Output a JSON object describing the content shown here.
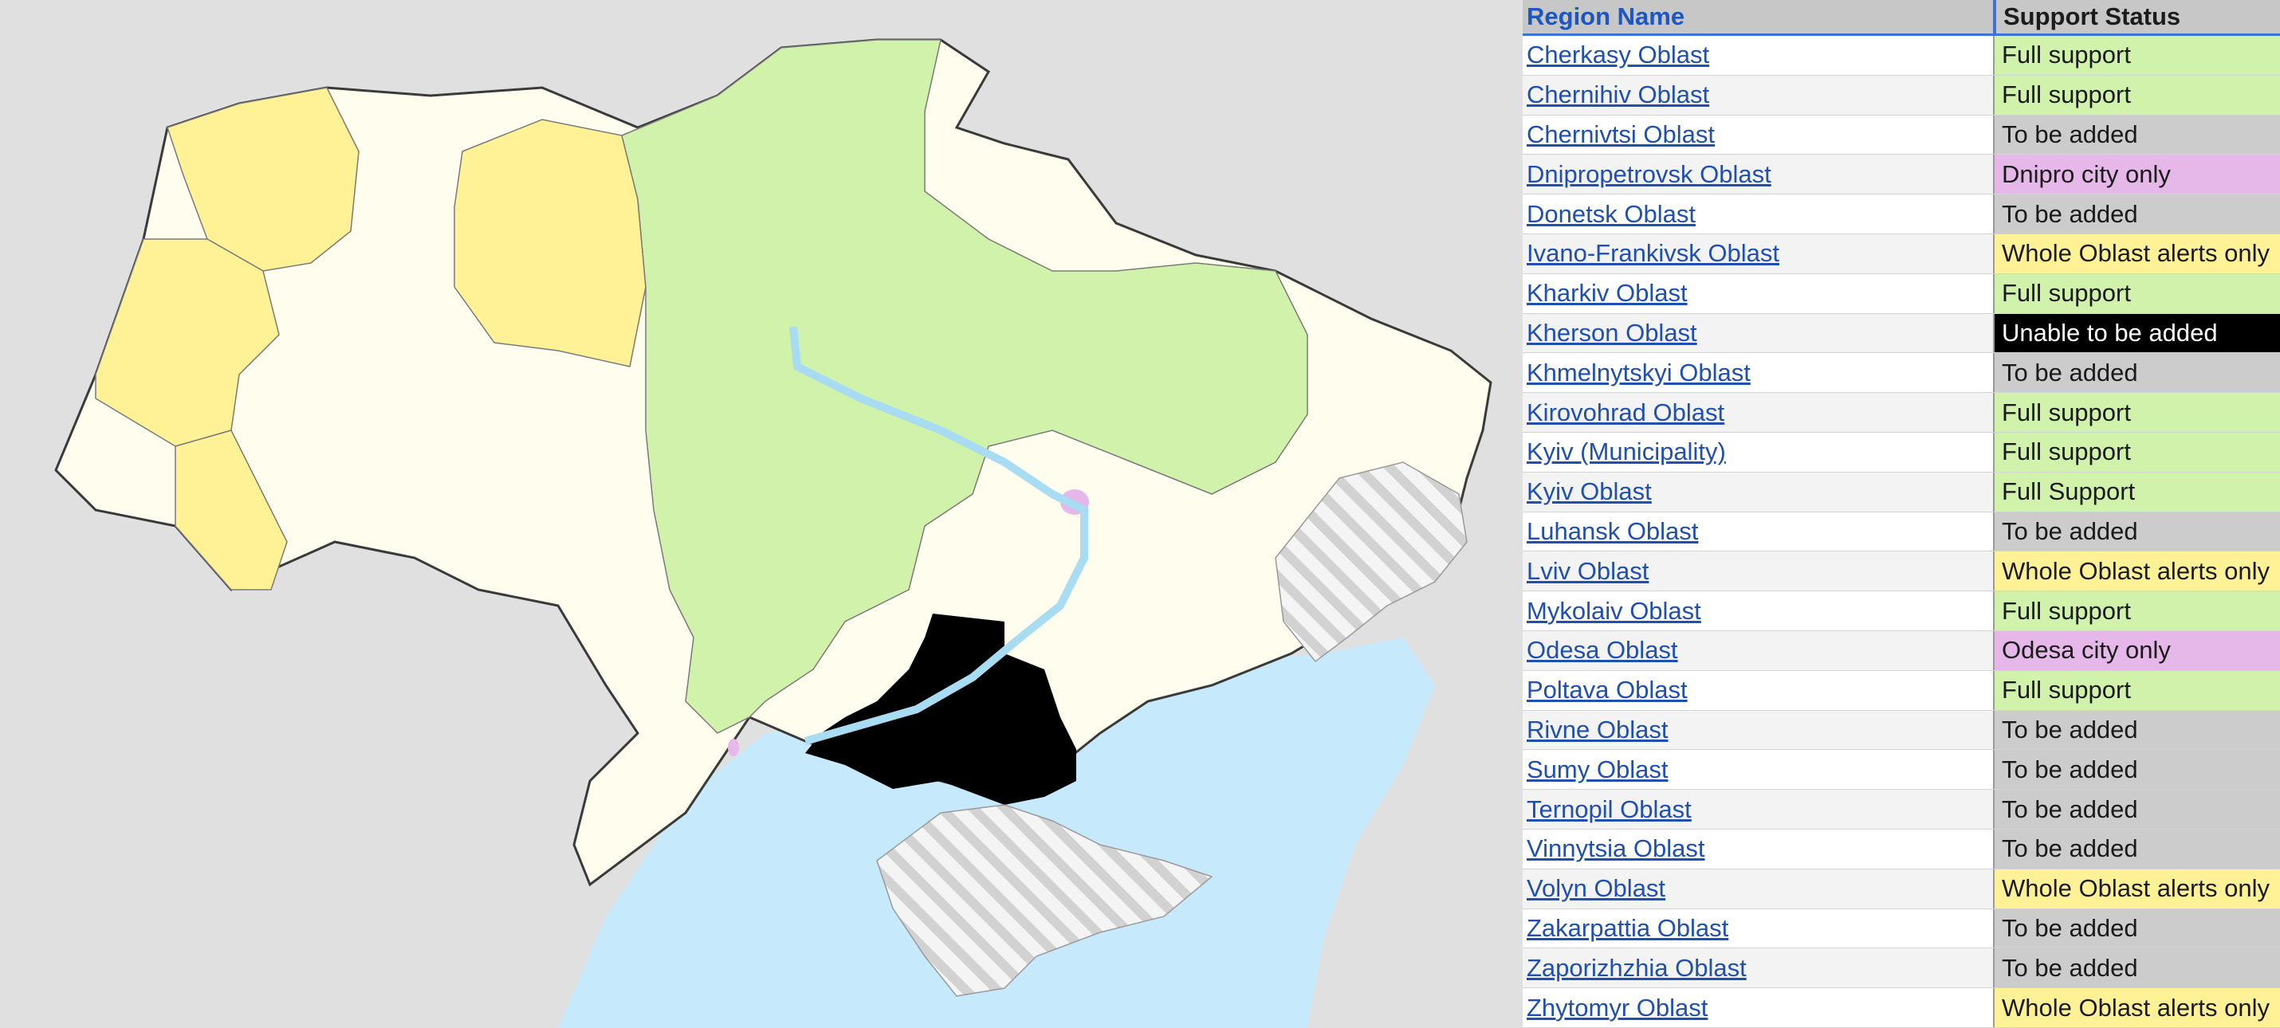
{
  "colors": {
    "full": "#d0f2ab",
    "to_be_added": "#cccccc",
    "city_only": "#e6b8ea",
    "whole_oblast": "#fff196",
    "unable": "#000000",
    "sea": "#c6eafb",
    "neighbors": "#e0e0e0",
    "ukraine_fill": "#fffdee",
    "occupied_hatch": "#cfcfcf"
  },
  "table": {
    "header": {
      "name": "Region Name",
      "status": "Support Status"
    },
    "rows": [
      {
        "name": "Cherkasy Oblast",
        "status": "Full support",
        "kind": "full"
      },
      {
        "name": "Chernihiv Oblast",
        "status": "Full support",
        "kind": "full"
      },
      {
        "name": "Chernivtsi Oblast",
        "status": "To be added",
        "kind": "to_be_added"
      },
      {
        "name": "Dnipropetrovsk Oblast",
        "status": "Dnipro city only",
        "kind": "city_only"
      },
      {
        "name": "Donetsk Oblast",
        "status": "To be added",
        "kind": "to_be_added"
      },
      {
        "name": "Ivano-Frankivsk Oblast",
        "status": "Whole Oblast alerts only",
        "kind": "whole_oblast"
      },
      {
        "name": "Kharkiv Oblast",
        "status": "Full support",
        "kind": "full"
      },
      {
        "name": "Kherson Oblast",
        "status": "Unable to be added",
        "kind": "unable"
      },
      {
        "name": "Khmelnytskyi Oblast",
        "status": "To be added",
        "kind": "to_be_added"
      },
      {
        "name": "Kirovohrad Oblast",
        "status": "Full support",
        "kind": "full"
      },
      {
        "name": "Kyiv (Municipality)",
        "status": "Full support",
        "kind": "full"
      },
      {
        "name": "Kyiv Oblast",
        "status": "Full Support",
        "kind": "full"
      },
      {
        "name": "Luhansk Oblast",
        "status": "To be added",
        "kind": "to_be_added"
      },
      {
        "name": "Lviv Oblast",
        "status": "Whole Oblast alerts only",
        "kind": "whole_oblast"
      },
      {
        "name": "Mykolaiv Oblast",
        "status": "Full support",
        "kind": "full"
      },
      {
        "name": "Odesa Oblast",
        "status": "Odesa city only",
        "kind": "city_only"
      },
      {
        "name": "Poltava Oblast",
        "status": "Full support",
        "kind": "full"
      },
      {
        "name": "Rivne Oblast",
        "status": "To be added",
        "kind": "to_be_added"
      },
      {
        "name": "Sumy Oblast",
        "status": "To be added",
        "kind": "to_be_added"
      },
      {
        "name": "Ternopil Oblast",
        "status": "To be added",
        "kind": "to_be_added"
      },
      {
        "name": "Vinnytsia Oblast",
        "status": "To be added",
        "kind": "to_be_added"
      },
      {
        "name": "Volyn Oblast",
        "status": "Whole Oblast alerts only",
        "kind": "whole_oblast"
      },
      {
        "name": "Zakarpattia Oblast",
        "status": "To be added",
        "kind": "to_be_added"
      },
      {
        "name": "Zaporizhzhia Oblast",
        "status": "To be added",
        "kind": "to_be_added"
      },
      {
        "name": "Zhytomyr Oblast",
        "status": "Whole Oblast alerts only",
        "kind": "whole_oblast"
      }
    ]
  }
}
